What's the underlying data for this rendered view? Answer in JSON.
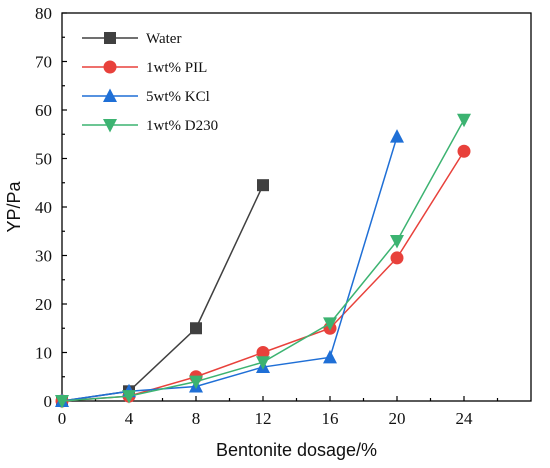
{
  "chart_data": {
    "type": "line",
    "xlabel": "Bentonite dosage/%",
    "ylabel": "YP/Pa",
    "xlim": [
      0,
      28
    ],
    "ylim": [
      0,
      80
    ],
    "xticks": [
      0,
      4,
      8,
      12,
      16,
      20,
      24
    ],
    "yticks": [
      0,
      10,
      20,
      30,
      40,
      50,
      60,
      70,
      80
    ],
    "grid": false,
    "legend_position": "top-left",
    "series": [
      {
        "name": "Water",
        "color": "#404040",
        "marker": "square",
        "points": [
          [
            0,
            0
          ],
          [
            4,
            2
          ],
          [
            8,
            15
          ],
          [
            12,
            44.5
          ]
        ]
      },
      {
        "name": "1wt% PIL",
        "color": "#e8413b",
        "marker": "circle",
        "points": [
          [
            0,
            0
          ],
          [
            4,
            1
          ],
          [
            8,
            5
          ],
          [
            12,
            10
          ],
          [
            16,
            15
          ],
          [
            20,
            29.5
          ],
          [
            24,
            51.5
          ]
        ]
      },
      {
        "name": "5wt% KCl",
        "color": "#1f6fd6",
        "marker": "triangle-up",
        "points": [
          [
            0,
            0
          ],
          [
            4,
            2
          ],
          [
            8,
            3
          ],
          [
            12,
            7
          ],
          [
            16,
            9
          ],
          [
            20,
            54.5
          ]
        ]
      },
      {
        "name": "1wt% D230",
        "color": "#3cb371",
        "marker": "triangle-down",
        "points": [
          [
            0,
            0
          ],
          [
            4,
            1
          ],
          [
            8,
            4
          ],
          [
            12,
            8
          ],
          [
            16,
            16
          ],
          [
            20,
            33
          ],
          [
            24,
            58
          ]
        ]
      }
    ]
  }
}
